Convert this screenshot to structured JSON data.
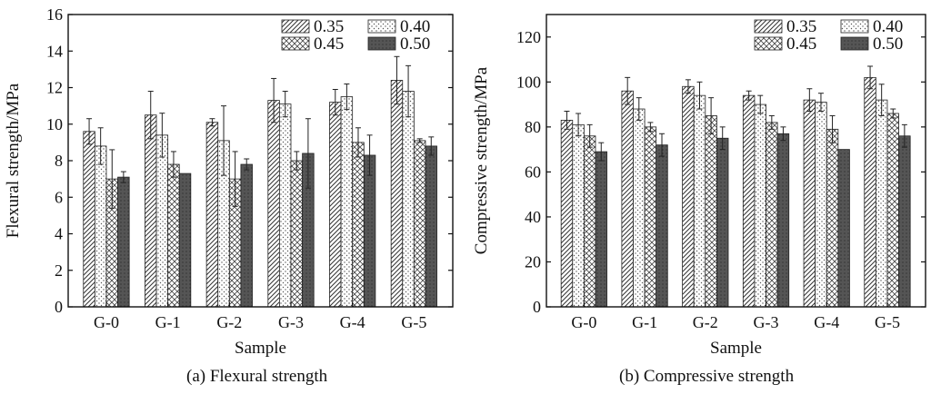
{
  "chart_data": [
    {
      "type": "bar",
      "caption": "(a) Flexural strength",
      "xlabel": "Sample",
      "ylabel": "Flexural strength/MPa",
      "ylim": [
        0,
        16
      ],
      "yticks": [
        0,
        2,
        4,
        6,
        8,
        10,
        12,
        14,
        16
      ],
      "categories": [
        "G-0",
        "G-1",
        "G-2",
        "G-3",
        "G-4",
        "G-5"
      ],
      "legend_position": "top-right",
      "grid": false,
      "series": [
        {
          "name": "0.35",
          "values": [
            9.6,
            10.5,
            10.1,
            11.3,
            11.2,
            12.4
          ],
          "errors": [
            0.7,
            1.3,
            0.2,
            1.2,
            0.7,
            1.3
          ],
          "pattern": "hatch-right"
        },
        {
          "name": "0.40",
          "values": [
            8.8,
            9.4,
            9.1,
            11.1,
            11.5,
            11.8
          ],
          "errors": [
            1.0,
            1.2,
            1.9,
            0.7,
            0.7,
            1.4
          ],
          "pattern": "dots"
        },
        {
          "name": "0.45",
          "values": [
            7.0,
            7.8,
            7.0,
            8.0,
            9.0,
            9.1
          ],
          "errors": [
            1.6,
            0.7,
            1.5,
            0.5,
            0.8,
            0.1
          ],
          "pattern": "hatch-cross"
        },
        {
          "name": "0.50",
          "values": [
            7.1,
            7.3,
            7.8,
            8.4,
            8.3,
            8.8
          ],
          "errors": [
            0.3,
            0.0,
            0.3,
            1.9,
            1.1,
            0.5
          ],
          "pattern": "dark"
        }
      ]
    },
    {
      "type": "bar",
      "caption": "(b) Compressive strength",
      "xlabel": "Sample",
      "ylabel": "Compressive strength/MPa",
      "ylim": [
        0,
        130
      ],
      "yticks": [
        0,
        20,
        40,
        60,
        80,
        100,
        120
      ],
      "categories": [
        "G-0",
        "G-1",
        "G-2",
        "G-3",
        "G-4",
        "G-5"
      ],
      "legend_position": "top-right",
      "grid": false,
      "series": [
        {
          "name": "0.35",
          "values": [
            83,
            96,
            98,
            94,
            92,
            102
          ],
          "errors": [
            4,
            6,
            3,
            2,
            5,
            5
          ],
          "pattern": "hatch-right"
        },
        {
          "name": "0.40",
          "values": [
            81,
            88,
            94,
            90,
            91,
            92
          ],
          "errors": [
            5,
            5,
            6,
            4,
            4,
            7
          ],
          "pattern": "dots"
        },
        {
          "name": "0.45",
          "values": [
            76,
            80,
            85,
            82,
            79,
            86
          ],
          "errors": [
            5,
            2,
            8,
            3,
            6,
            2
          ],
          "pattern": "hatch-cross"
        },
        {
          "name": "0.50",
          "values": [
            69,
            72,
            75,
            77,
            70,
            76
          ],
          "errors": [
            4,
            5,
            5,
            3,
            0,
            5
          ],
          "pattern": "dark"
        }
      ]
    }
  ]
}
